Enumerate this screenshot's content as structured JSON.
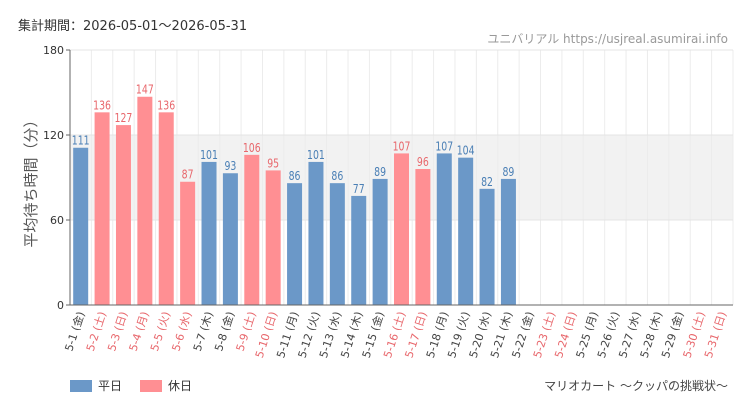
{
  "header": {
    "period": "集計期間：2026-05-01〜2026-05-31",
    "watermark": "ユニバリアル https://usjreal.asumirai.info"
  },
  "footer": {
    "attraction": "マリオカート 〜クッパの挑戦状〜"
  },
  "colors": {
    "weekday": "#6b98c8",
    "holiday": "#ff8f93",
    "weekday_text": "#444444",
    "holiday_text": "#e8676c"
  },
  "chart_data": {
    "type": "bar",
    "ylabel": "平均待ち時間（分）",
    "ylim": [
      0,
      180
    ],
    "yticks": [
      0,
      60,
      120,
      180
    ],
    "shaded_band": [
      60,
      120
    ],
    "grid": true,
    "legend_placement": "bottom-left",
    "legend": [
      {
        "label": "平日",
        "kind": "weekday"
      },
      {
        "label": "休日",
        "kind": "holiday"
      }
    ],
    "categories": [
      "5-1 (金)",
      "5-2 (土)",
      "5-3 (日)",
      "5-4 (月)",
      "5-5 (火)",
      "5-6 (水)",
      "5-7 (木)",
      "5-8 (金)",
      "5-9 (土)",
      "5-10 (日)",
      "5-11 (月)",
      "5-12 (火)",
      "5-13 (水)",
      "5-14 (木)",
      "5-15 (金)",
      "5-16 (土)",
      "5-17 (日)",
      "5-18 (月)",
      "5-19 (火)",
      "5-20 (水)",
      "5-21 (木)",
      "5-22 (金)",
      "5-23 (土)",
      "5-24 (日)",
      "5-25 (月)",
      "5-26 (火)",
      "5-27 (水)",
      "5-28 (木)",
      "5-29 (金)",
      "5-30 (土)",
      "5-31 (日)"
    ],
    "values": [
      111,
      136,
      127,
      147,
      136,
      87,
      101,
      93,
      106,
      95,
      86,
      101,
      86,
      77,
      89,
      107,
      96,
      107,
      104,
      82,
      89,
      null,
      null,
      null,
      null,
      null,
      null,
      null,
      null,
      null,
      null
    ],
    "day_kind": [
      "weekday",
      "holiday",
      "holiday",
      "holiday",
      "holiday",
      "holiday",
      "weekday",
      "weekday",
      "holiday",
      "holiday",
      "weekday",
      "weekday",
      "weekday",
      "weekday",
      "weekday",
      "holiday",
      "holiday",
      "weekday",
      "weekday",
      "weekday",
      "weekday",
      "weekday",
      "holiday",
      "holiday",
      "weekday",
      "weekday",
      "weekday",
      "weekday",
      "weekday",
      "holiday",
      "holiday"
    ]
  }
}
